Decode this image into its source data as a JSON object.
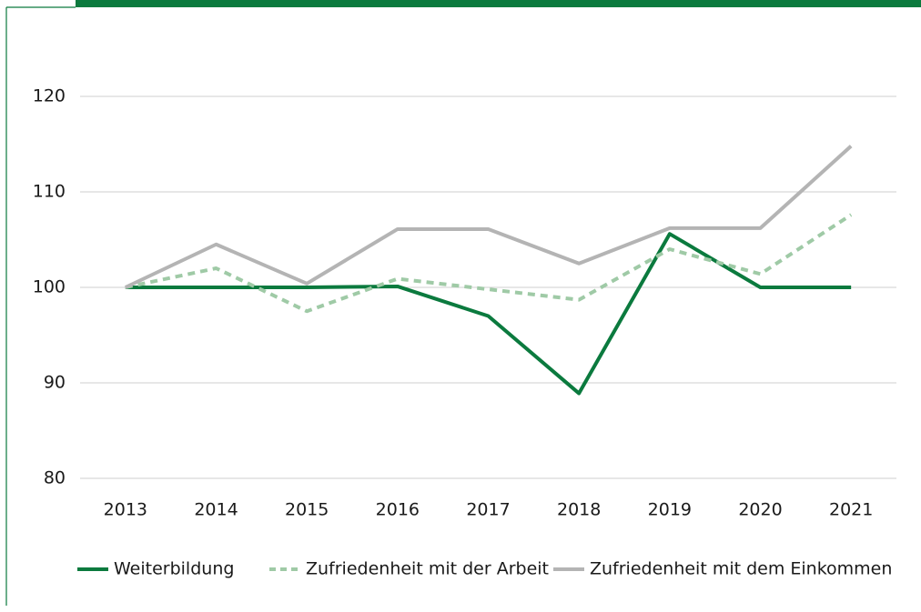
{
  "chart_data": {
    "type": "line",
    "categories": [
      "2013",
      "2014",
      "2015",
      "2016",
      "2017",
      "2018",
      "2019",
      "2020",
      "2021"
    ],
    "series": [
      {
        "name": "Weiterbildung",
        "color": "#0b7a3e",
        "line_style": "solid",
        "values": [
          100,
          100,
          100,
          100.1,
          97,
          88.9,
          105.6,
          100,
          100
        ]
      },
      {
        "name": "Zufriedenheit mit der Arbeit",
        "color": "#9fcaa6",
        "line_style": "dashed",
        "values": [
          100,
          102,
          97.5,
          100.9,
          99.8,
          98.7,
          104,
          101.4,
          107.6
        ]
      },
      {
        "name": "Zufriedenheit mit dem Einkommen",
        "color": "#b4b4b4",
        "line_style": "solid",
        "values": [
          100,
          104.5,
          100.4,
          106.1,
          106.1,
          102.5,
          106.2,
          106.2,
          114.8
        ]
      }
    ],
    "ylim": [
      80,
      120
    ],
    "yticks": [
      80,
      90,
      100,
      110,
      120
    ],
    "grid": true,
    "legend": "bottom"
  }
}
